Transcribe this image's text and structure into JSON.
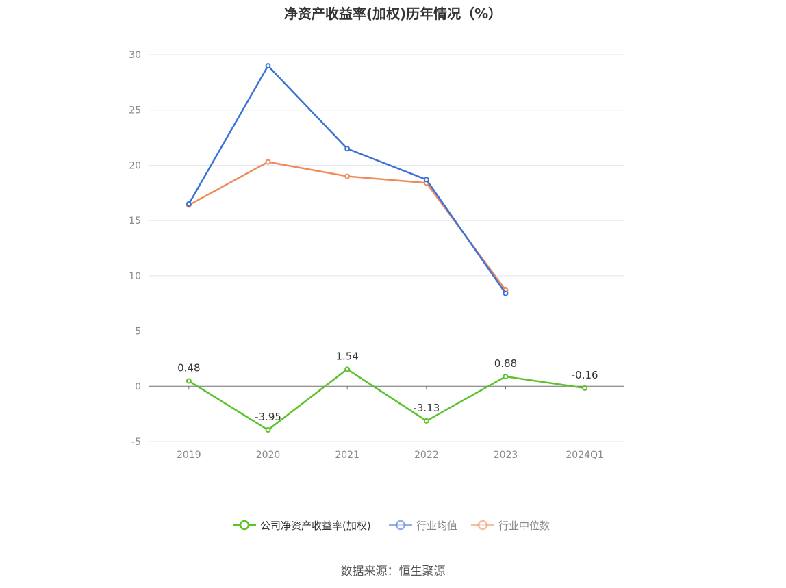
{
  "title": "净资产收益率(加权)历年情况（%）",
  "source": "数据来源：恒生聚源",
  "chart_data": {
    "type": "line",
    "categories": [
      "2019",
      "2020",
      "2021",
      "2022",
      "2023",
      "2024Q1"
    ],
    "ylim": [
      -5,
      30
    ],
    "yticks": [
      "-5",
      "0",
      "5",
      "10",
      "15",
      "20",
      "25",
      "30"
    ],
    "grid": true,
    "legend_position": "bottom",
    "series": [
      {
        "name": "公司净资产收益率(加权)",
        "color": "#5cc22a",
        "values": [
          0.48,
          -3.95,
          1.54,
          -3.13,
          0.88,
          -0.16
        ],
        "labels": [
          "0.48",
          "-3.95",
          "1.54",
          "-3.13",
          "0.88",
          "-0.16"
        ]
      },
      {
        "name": "行业均值",
        "color": "#3a72d8",
        "values": [
          16.5,
          29.0,
          21.5,
          18.7,
          8.4,
          null
        ]
      },
      {
        "name": "行业中位数",
        "color": "#f08a5a",
        "values": [
          16.4,
          20.3,
          19.0,
          18.4,
          8.7,
          null
        ]
      }
    ]
  }
}
